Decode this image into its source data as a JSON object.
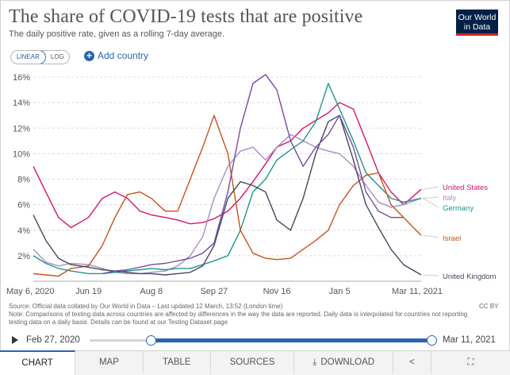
{
  "header": {
    "title": "The share of COVID-19 tests that are positive",
    "subtitle": "The daily positive rate, given as a rolling 7-day average.",
    "logo_line1": "Our World",
    "logo_line2": "in Data"
  },
  "controls": {
    "scale_options": [
      "LINEAR",
      "LOG"
    ],
    "scale_selected": "LINEAR",
    "add_country": "Add country"
  },
  "footnote": {
    "source": "Source: Official data collated by Our World in Data – Last updated 12 March, 13:52 (London time)",
    "note": "Note: Comparisons of testing data across countries are affected by differences in the way the data are reported. Daily data is interpolated for countries not reporting testing data on a daily basis. Details can be found at our Testing Dataset page",
    "license": "CC BY"
  },
  "timeline": {
    "start": "Feb 27, 2020",
    "end": "Mar 11, 2021"
  },
  "tabs": [
    "CHART",
    "MAP",
    "TABLE",
    "SOURCES",
    "DOWNLOAD"
  ],
  "colors": {
    "united_states": "#d7146e",
    "italy": "#a88ec9",
    "germany": "#20958c",
    "israel": "#c8531a",
    "united_kingdom": "#3f4a5e",
    "spain": "#7a49a5"
  },
  "chart_data": {
    "type": "line",
    "ylim": [
      0,
      16
    ],
    "y_ticks": [
      "2%",
      "4%",
      "6%",
      "8%",
      "10%",
      "12%",
      "14%",
      "16%"
    ],
    "x_ticks": [
      "May 6, 2020",
      "Jun 19",
      "Aug 8",
      "Sep 27",
      "Nov 16",
      "Jan 5",
      "Mar 11, 2021"
    ],
    "x_tick_days": [
      0,
      44,
      94,
      144,
      194,
      244,
      309
    ],
    "x_days": [
      0,
      10,
      20,
      30,
      44,
      55,
      65,
      75,
      85,
      94,
      105,
      115,
      125,
      135,
      144,
      155,
      165,
      175,
      185,
      194,
      205,
      215,
      225,
      235,
      244,
      255,
      265,
      275,
      285,
      295,
      309
    ],
    "series": [
      {
        "name": "United States",
        "color": "#d7146e",
        "values": [
          9,
          7,
          5,
          4.2,
          5,
          6.5,
          7,
          6.5,
          5.5,
          5.2,
          5,
          4.8,
          4.5,
          4.6,
          4.9,
          5.5,
          6.5,
          7.8,
          9.2,
          10.5,
          11,
          12,
          12.6,
          13.2,
          14,
          13.5,
          11,
          8.5,
          7,
          6,
          7.2
        ]
      },
      {
        "name": "Italy",
        "color": "#a88ec9",
        "values": [
          2.5,
          1.5,
          1.2,
          1.4,
          1.3,
          1,
          0.7,
          0.6,
          0.6,
          0.7,
          0.8,
          1.2,
          2,
          3.5,
          6.5,
          9,
          10.2,
          10.5,
          9.5,
          10.5,
          11.5,
          11,
          10.5,
          10.2,
          10,
          9,
          7.5,
          6.2,
          5.8,
          6,
          6.5
        ]
      },
      {
        "name": "Germany",
        "color": "#20958c",
        "values": [
          2,
          1.4,
          1,
          0.8,
          0.6,
          0.6,
          0.7,
          0.8,
          0.9,
          1,
          0.9,
          1,
          1,
          1.3,
          1.6,
          2,
          4,
          7,
          8,
          9.5,
          10.3,
          11,
          12.5,
          15.5,
          13.5,
          11,
          8.5,
          7.5,
          6.5,
          6.2,
          6.5
        ]
      },
      {
        "name": "Israel",
        "color": "#c8531a",
        "values": [
          0.6,
          0.5,
          0.4,
          1,
          1.2,
          2.8,
          5,
          6.8,
          7,
          6.5,
          5.5,
          5.5,
          8,
          10.5,
          13,
          10,
          4,
          2.2,
          1.8,
          1.7,
          1.8,
          2.5,
          3.2,
          4,
          6,
          7.5,
          8.3,
          8.5,
          6,
          5,
          3.6
        ]
      },
      {
        "name": "United Kingdom",
        "color": "#3f4a5e",
        "values": [
          5.2,
          3.2,
          1.8,
          1.3,
          1.1,
          0.9,
          0.8,
          0.7,
          0.6,
          0.6,
          0.5,
          0.6,
          0.7,
          1.2,
          2.8,
          6.5,
          7.8,
          7.5,
          7,
          4.8,
          4,
          6.5,
          10,
          12.5,
          13,
          9.5,
          6,
          4.2,
          2.5,
          1.3,
          0.5
        ]
      },
      {
        "name": "",
        "color": "#7a49a5",
        "values": [
          null,
          null,
          null,
          null,
          null,
          0.6,
          0.8,
          0.9,
          1.1,
          1.3,
          1.4,
          1.6,
          1.8,
          2.2,
          3,
          7,
          12,
          15.5,
          16.2,
          15,
          11,
          9,
          10.5,
          11.5,
          13,
          10.5,
          7,
          5.5,
          5,
          5,
          null
        ]
      }
    ],
    "legend": [
      "United States",
      "Italy",
      "Germany",
      "Israel",
      "United Kingdom"
    ]
  }
}
